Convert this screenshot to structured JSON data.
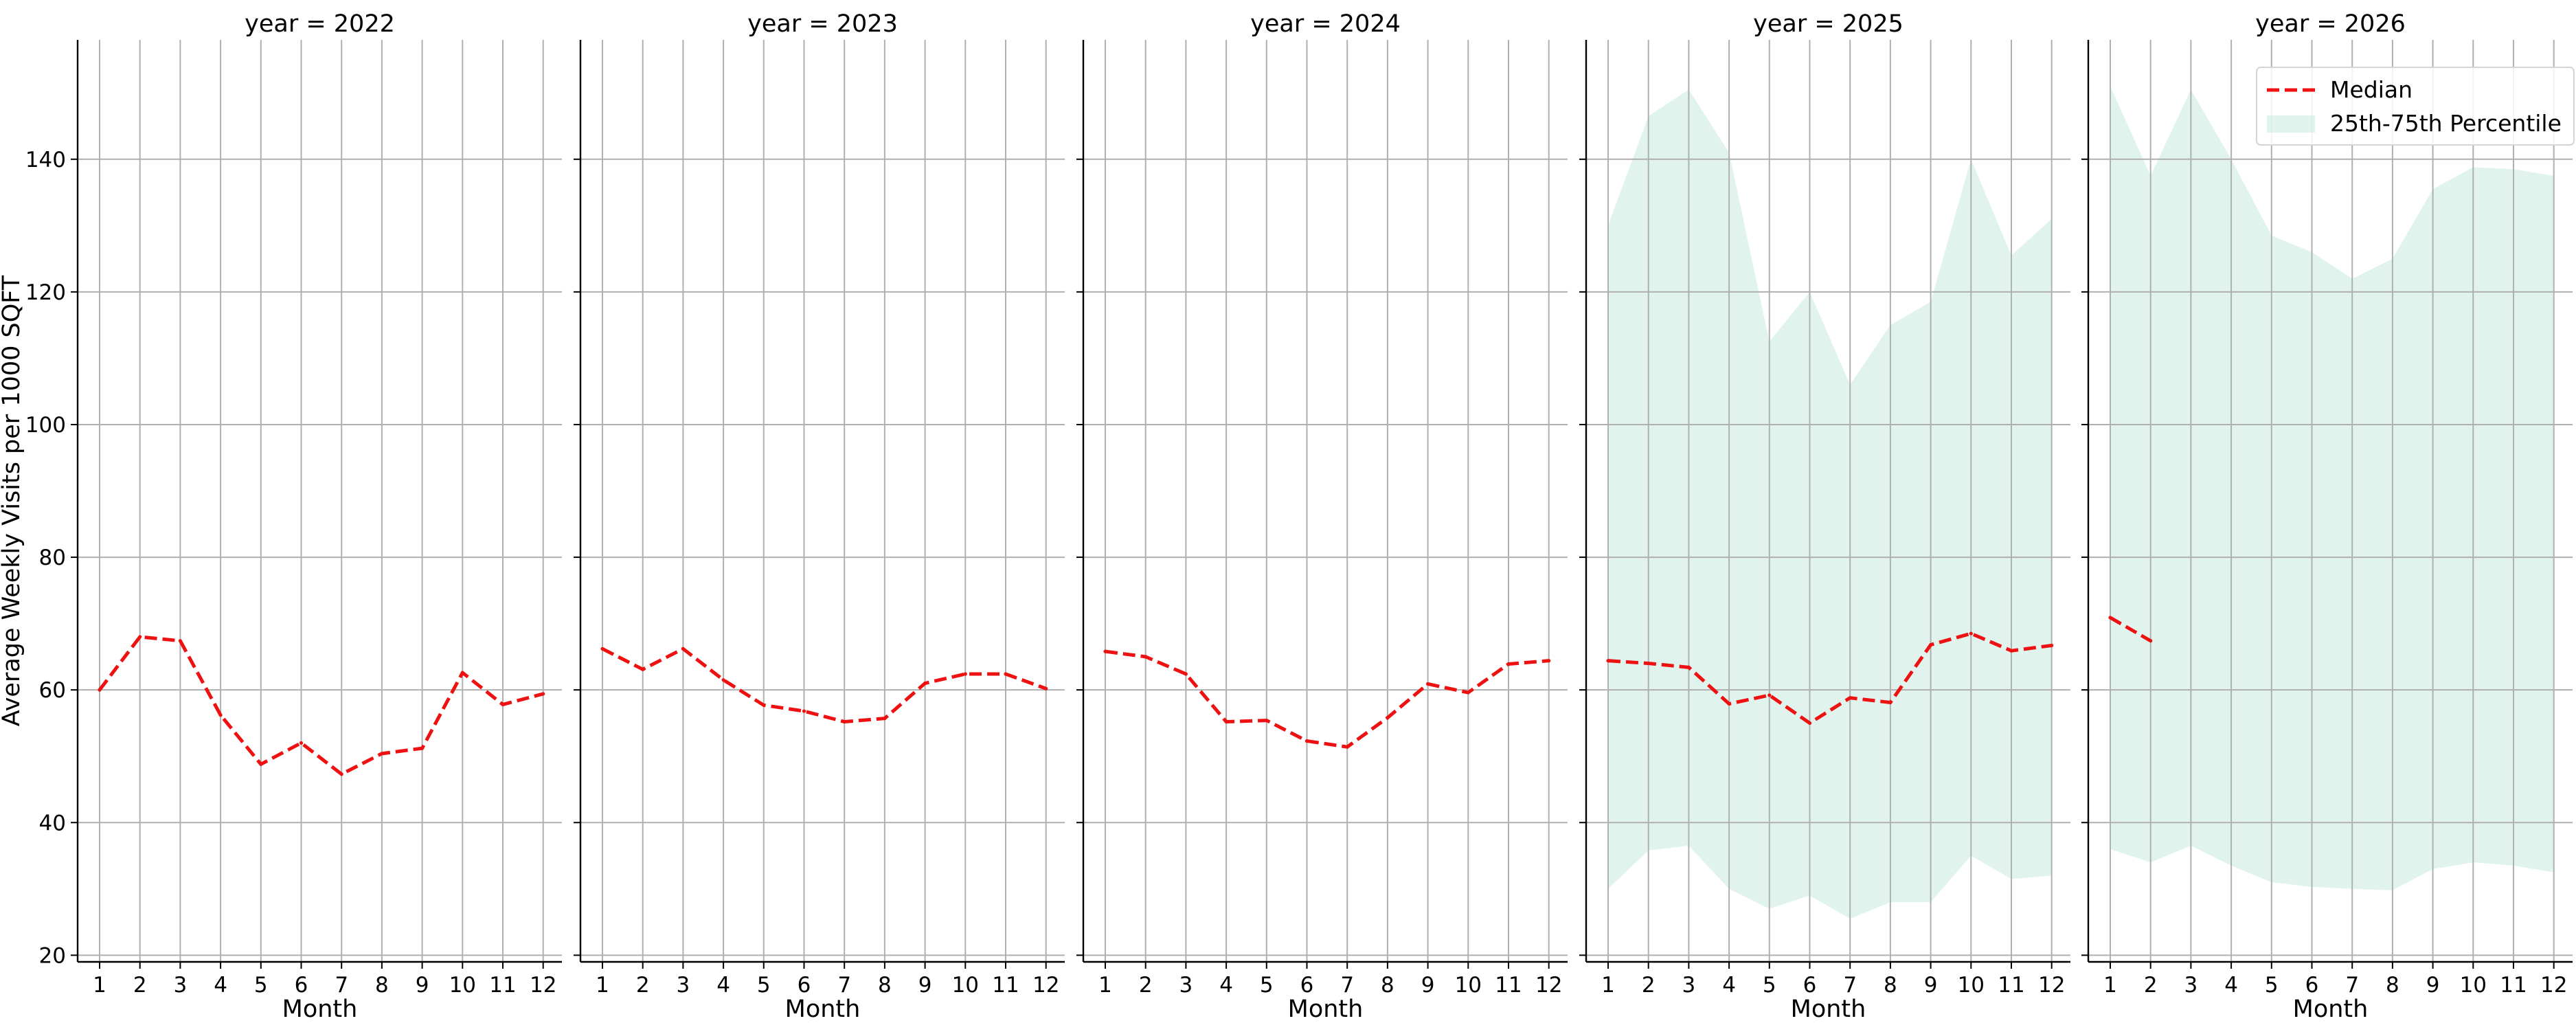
{
  "chart_data": {
    "type": "line",
    "ylabel": "Average Weekly Visits per 1000 SQFT",
    "xlabel": "Month",
    "x": [
      1,
      2,
      3,
      4,
      5,
      6,
      7,
      8,
      9,
      10,
      11,
      12
    ],
    "ylim": [
      19,
      158
    ],
    "yticks": [
      20,
      40,
      60,
      80,
      100,
      120,
      140
    ],
    "grid": true,
    "legend": {
      "placement": "top-right",
      "entries": [
        "Median",
        "25th-75th Percentile"
      ]
    },
    "colors": {
      "median": "#ee1111",
      "band": "#c6eadf"
    },
    "panels": [
      {
        "title": "year = 2022",
        "median": [
          60.0,
          68.0,
          67.4,
          56.2,
          48.8,
          52.0,
          47.3,
          50.4,
          51.2,
          62.6,
          57.8,
          59.4
        ],
        "p25": null,
        "p75": null
      },
      {
        "title": "year = 2023",
        "median": [
          66.2,
          63.1,
          66.2,
          61.5,
          57.7,
          56.8,
          55.2,
          55.7,
          61.0,
          62.4,
          62.4,
          60.2
        ],
        "p25": null,
        "p75": null
      },
      {
        "title": "year = 2024",
        "median": [
          65.8,
          65.0,
          62.4,
          55.2,
          55.4,
          52.3,
          51.4,
          55.8,
          60.9,
          59.6,
          63.9,
          64.4
        ],
        "p25": null,
        "p75": null
      },
      {
        "title": "year = 2025",
        "median": [
          64.4,
          64.0,
          63.4,
          57.9,
          59.2,
          55.0,
          58.8,
          58.1,
          66.8,
          68.5,
          65.9,
          66.7
        ],
        "p25": [
          30.0,
          35.8,
          36.5,
          30.0,
          27.0,
          29.0,
          25.5,
          28.0,
          28.0,
          35.0,
          31.5,
          32.0
        ],
        "p75": [
          130.0,
          146.5,
          150.5,
          141.0,
          112.5,
          120.0,
          106.0,
          115.0,
          118.5,
          140.0,
          125.5,
          131.0
        ]
      },
      {
        "title": "year = 2026",
        "median": [
          70.9,
          67.4
        ],
        "p25": [
          36.0,
          34.0,
          36.5,
          33.5,
          31.0,
          30.3,
          30.0,
          29.8,
          33.0,
          34.0,
          33.5,
          32.5
        ],
        "p75": [
          151.0,
          137.5,
          150.5,
          140.0,
          128.5,
          126.0,
          122.0,
          125.0,
          135.5,
          138.8,
          138.5,
          137.5
        ]
      }
    ]
  }
}
